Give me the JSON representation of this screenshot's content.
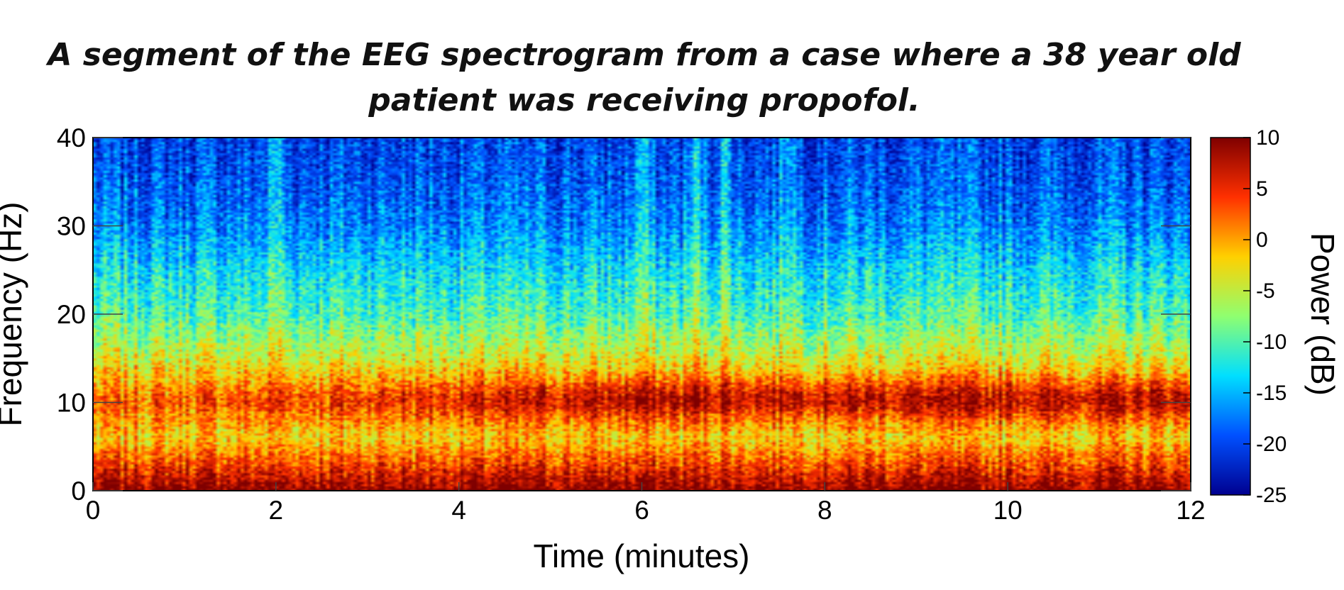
{
  "chart_data": {
    "type": "heatmap",
    "title_line1": "A segment of the EEG spectrogram from a case where a 38 year old",
    "title_line2": "patient was receiving propofol.",
    "xlabel": "Time (minutes)",
    "ylabel": "Frequency (Hz)",
    "xlim": [
      0,
      12
    ],
    "ylim": [
      0,
      40
    ],
    "x_ticks": [
      0,
      2,
      4,
      6,
      8,
      10,
      12
    ],
    "x_tick_labels": [
      "0",
      "2",
      "4",
      "6",
      "8",
      "10",
      "12"
    ],
    "y_ticks": [
      0,
      10,
      20,
      30,
      40
    ],
    "y_tick_labels": [
      "0",
      "10",
      "20",
      "30",
      "40"
    ],
    "colorbar": {
      "label": "Power (dB)",
      "range": [
        -25,
        10
      ],
      "ticks": [
        10,
        5,
        0,
        -5,
        -10,
        -15,
        -20,
        -25
      ],
      "tick_labels": [
        "10",
        "5",
        "0",
        "-5",
        "-10",
        "-15",
        "-20",
        "-25"
      ]
    },
    "colormap": [
      "#00008f",
      "#0050ff",
      "#00dfff",
      "#8fff70",
      "#ffd000",
      "#ff3000",
      "#7f0000"
    ],
    "grid": false,
    "power_profile_db": {
      "frequency_hz": [
        0,
        3,
        6,
        10,
        14,
        20,
        25,
        30,
        35,
        40
      ],
      "power_db": [
        10,
        4,
        -2,
        2,
        -3,
        -10,
        -13,
        -17,
        -19,
        -20
      ]
    }
  }
}
